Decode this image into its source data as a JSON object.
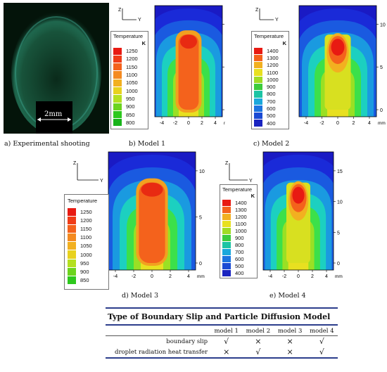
{
  "panels": {
    "a": {
      "caption": "a) Experimental shooting",
      "scale_label": "2mm"
    },
    "b": {
      "caption": "b) Model 1"
    },
    "c": {
      "caption": "c) Model 2"
    },
    "d": {
      "caption": "d) Model 3"
    },
    "e": {
      "caption": "e) Model 4"
    }
  },
  "legend1": {
    "title": "Temperature",
    "unit": "K",
    "values": [
      "1250",
      "1200",
      "1150",
      "1100",
      "1050",
      "1000",
      "950",
      "900",
      "850",
      "800"
    ],
    "colors": [
      "#e81a12",
      "#f03c18",
      "#f4621c",
      "#f48a20",
      "#f2b020",
      "#e8d21e",
      "#b4e020",
      "#6cd41e",
      "#2ec81e",
      "#18b41a"
    ]
  },
  "legend2": {
    "title": "Temperature",
    "unit": "K",
    "values": [
      "1400",
      "1300",
      "1200",
      "1100",
      "1000",
      "900",
      "800",
      "700",
      "600",
      "500",
      "400"
    ],
    "colors": [
      "#e81a12",
      "#f4621c",
      "#f2b020",
      "#e8e020",
      "#a0dc24",
      "#3ccc3c",
      "#1cc4a4",
      "#1aa8dc",
      "#1c74e0",
      "#1a4ad4",
      "#1a24c0"
    ]
  },
  "legend3": {
    "title": "Temperature",
    "values": [
      "1250",
      "1200",
      "1150",
      "1100",
      "1050",
      "1000",
      "950",
      "900",
      "850"
    ],
    "colors": [
      "#e81a12",
      "#f03c18",
      "#f4621c",
      "#f48a20",
      "#f2b020",
      "#e8d21e",
      "#b4e020",
      "#6cd41e",
      "#2ec81e"
    ]
  },
  "axes": {
    "x_ticks": [
      "-4",
      "-2",
      "0",
      "2",
      "4"
    ],
    "x_unit": "mm",
    "y_ticks": [
      "0",
      "5",
      "10",
      "15"
    ],
    "axis_z": "Z",
    "axis_y": "Y"
  },
  "table": {
    "title": "Type of Boundary Slip and Particle Diffusion Model",
    "columns": [
      "model 1",
      "model 2",
      "model 3",
      "model 4"
    ],
    "rows": [
      {
        "label": "boundary slip",
        "cells": [
          "√",
          "×",
          "×",
          "√"
        ]
      },
      {
        "label": "droplet radiation heat transfer",
        "cells": [
          "×",
          "√",
          "×",
          "√"
        ]
      }
    ]
  }
}
